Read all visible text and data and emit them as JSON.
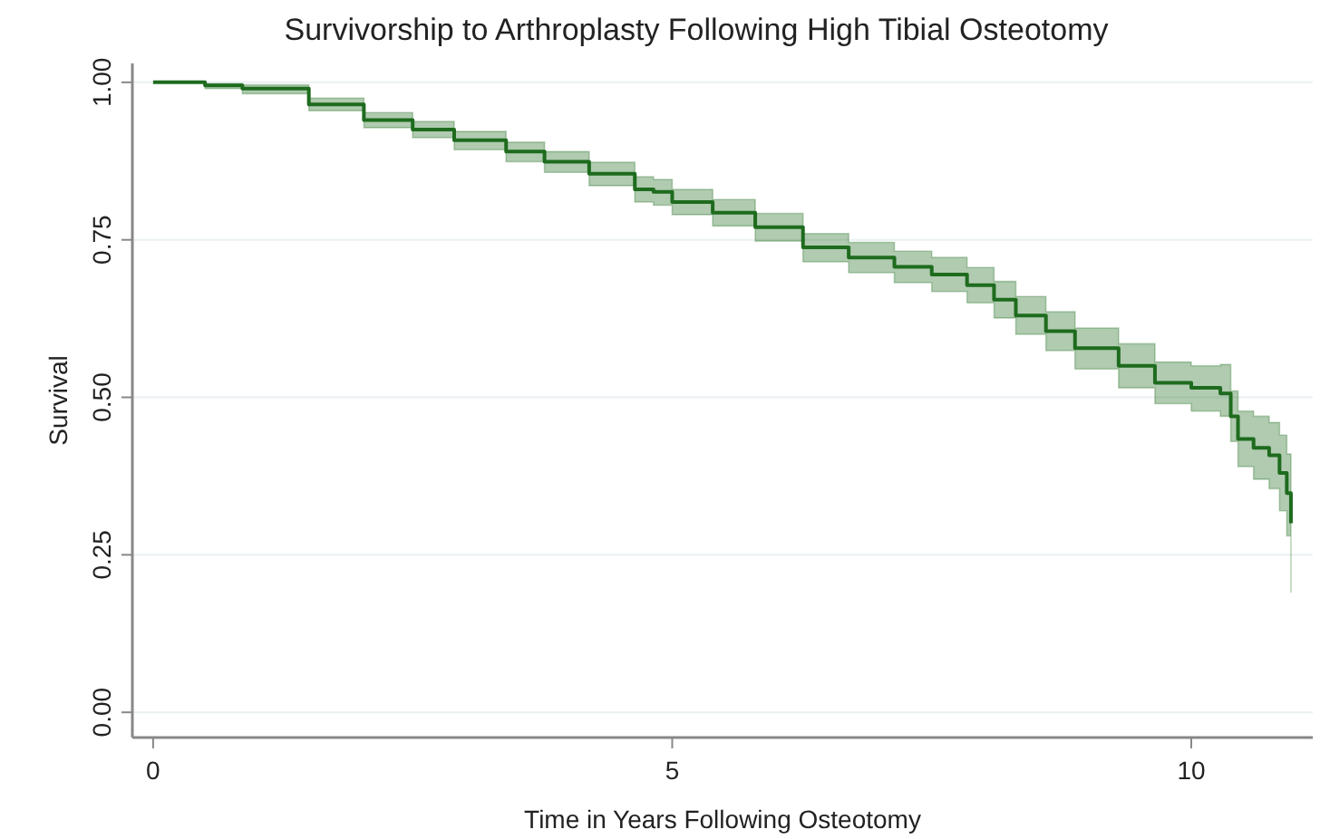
{
  "chart_data": {
    "type": "step",
    "title": "Survivorship to Arthroplasty Following High Tibial Osteotomy",
    "xlabel": "Time in Years Following Osteotomy",
    "ylabel": "Survival",
    "xlim": [
      -0.2,
      11.17
    ],
    "xticks": [
      0,
      5,
      10
    ],
    "ylim": [
      -0.04,
      1.03
    ],
    "yticks": [
      {
        "value": 0,
        "label": "0.00"
      },
      {
        "value": 0.25,
        "label": "0.25"
      },
      {
        "value": 0.5,
        "label": "0.50"
      },
      {
        "value": 0.75,
        "label": "0.75"
      },
      {
        "value": 1,
        "label": "1.00"
      }
    ],
    "grid": "y",
    "series": [
      {
        "color": "#1e6b1e",
        "x": [
          0,
          0.5,
          0.86,
          1.5,
          2.03,
          2.5,
          2.9,
          3.4,
          3.77,
          4.2,
          4.64,
          4.82,
          5,
          5.39,
          5.8,
          6.26,
          6.7,
          7.14,
          7.5,
          7.84,
          8.1,
          8.31,
          8.6,
          8.88,
          9.3,
          9.65,
          10,
          10.28,
          10.38,
          10.45,
          10.6,
          10.75,
          10.85,
          10.92,
          10.96
        ],
        "values": [
          1,
          0.995,
          0.99,
          0.965,
          0.94,
          0.925,
          0.908,
          0.89,
          0.874,
          0.855,
          0.83,
          0.826,
          0.81,
          0.793,
          0.77,
          0.738,
          0.722,
          0.707,
          0.695,
          0.678,
          0.655,
          0.63,
          0.605,
          0.578,
          0.55,
          0.523,
          0.515,
          0.506,
          0.47,
          0.434,
          0.42,
          0.408,
          0.38,
          0.348,
          0.3
        ],
        "lower": [
          1,
          0.99,
          0.982,
          0.955,
          0.928,
          0.912,
          0.893,
          0.874,
          0.857,
          0.836,
          0.81,
          0.805,
          0.79,
          0.772,
          0.748,
          0.715,
          0.698,
          0.682,
          0.668,
          0.65,
          0.626,
          0.6,
          0.574,
          0.545,
          0.515,
          0.49,
          0.478,
          0.47,
          0.43,
          0.39,
          0.37,
          0.355,
          0.32,
          0.28,
          0.19
        ],
        "upper": [
          1,
          0.998,
          0.996,
          0.975,
          0.952,
          0.938,
          0.922,
          0.905,
          0.89,
          0.873,
          0.85,
          0.846,
          0.83,
          0.814,
          0.792,
          0.76,
          0.746,
          0.732,
          0.722,
          0.706,
          0.684,
          0.66,
          0.636,
          0.61,
          0.585,
          0.556,
          0.55,
          0.552,
          0.51,
          0.478,
          0.47,
          0.46,
          0.44,
          0.41,
          0.41
        ]
      }
    ]
  }
}
